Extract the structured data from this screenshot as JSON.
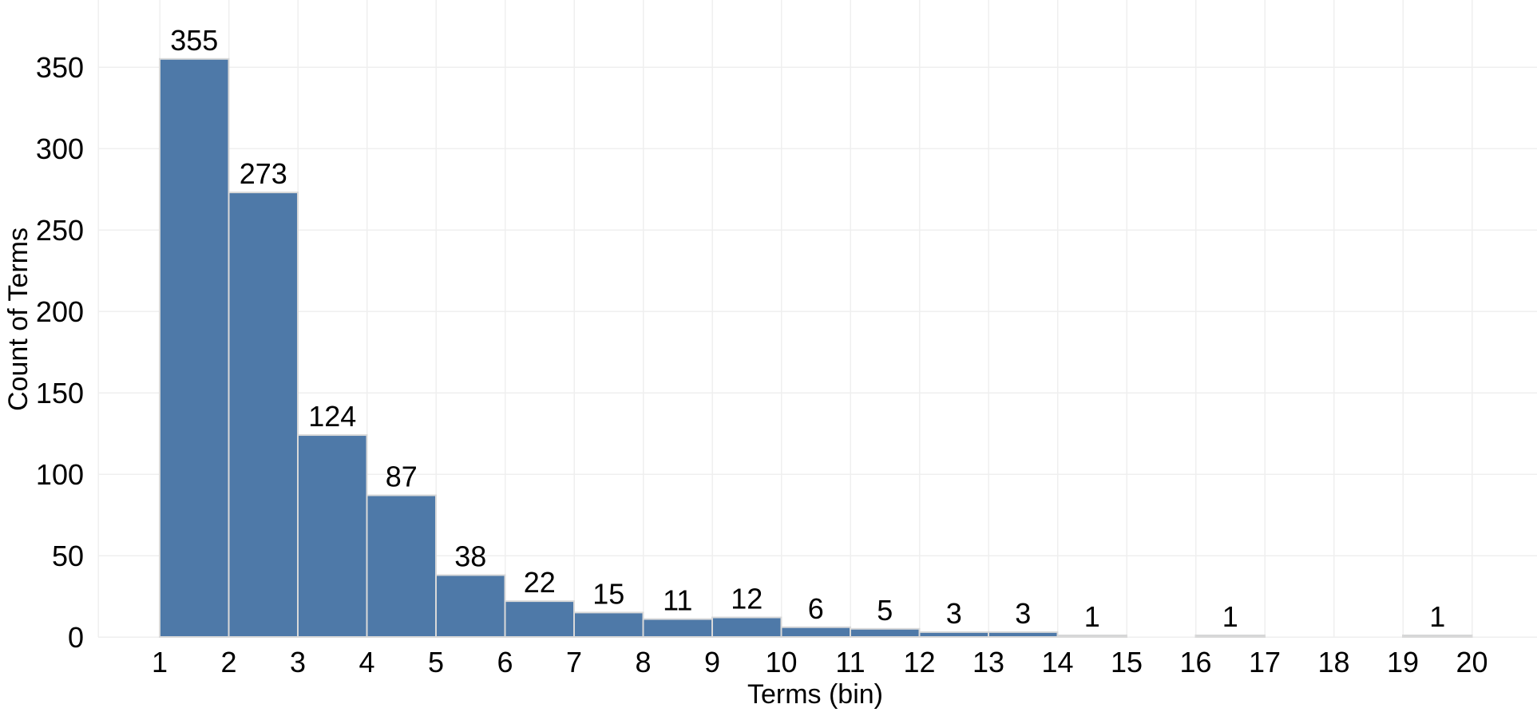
{
  "chart_data": {
    "type": "bar",
    "subtype": "histogram",
    "title": "",
    "xlabel": "Terms (bin)",
    "ylabel": "Count of Terms",
    "bin_edges": [
      1,
      2,
      3,
      4,
      5,
      6,
      7,
      8,
      9,
      10,
      11,
      12,
      13,
      14,
      15,
      16,
      17,
      18,
      19,
      20
    ],
    "counts": [
      355,
      273,
      124,
      87,
      38,
      22,
      15,
      11,
      12,
      6,
      5,
      3,
      3,
      1,
      0,
      1,
      0,
      0,
      1
    ],
    "x_ticks": [
      1,
      2,
      3,
      4,
      5,
      6,
      7,
      8,
      9,
      10,
      11,
      12,
      13,
      14,
      15,
      16,
      17,
      18,
      19,
      20
    ],
    "y_ticks": [
      0,
      50,
      100,
      150,
      200,
      250,
      300,
      350
    ],
    "xlim": [
      0.1,
      20.9
    ],
    "ylim": [
      0,
      390
    ],
    "grid": true,
    "legend": false,
    "data_labels": true,
    "colors": {
      "bar_fill": "#4e79a8",
      "bar_stroke": "#d9d9d9",
      "grid": "#efefef",
      "text": "#000000",
      "background": "#ffffff"
    }
  }
}
